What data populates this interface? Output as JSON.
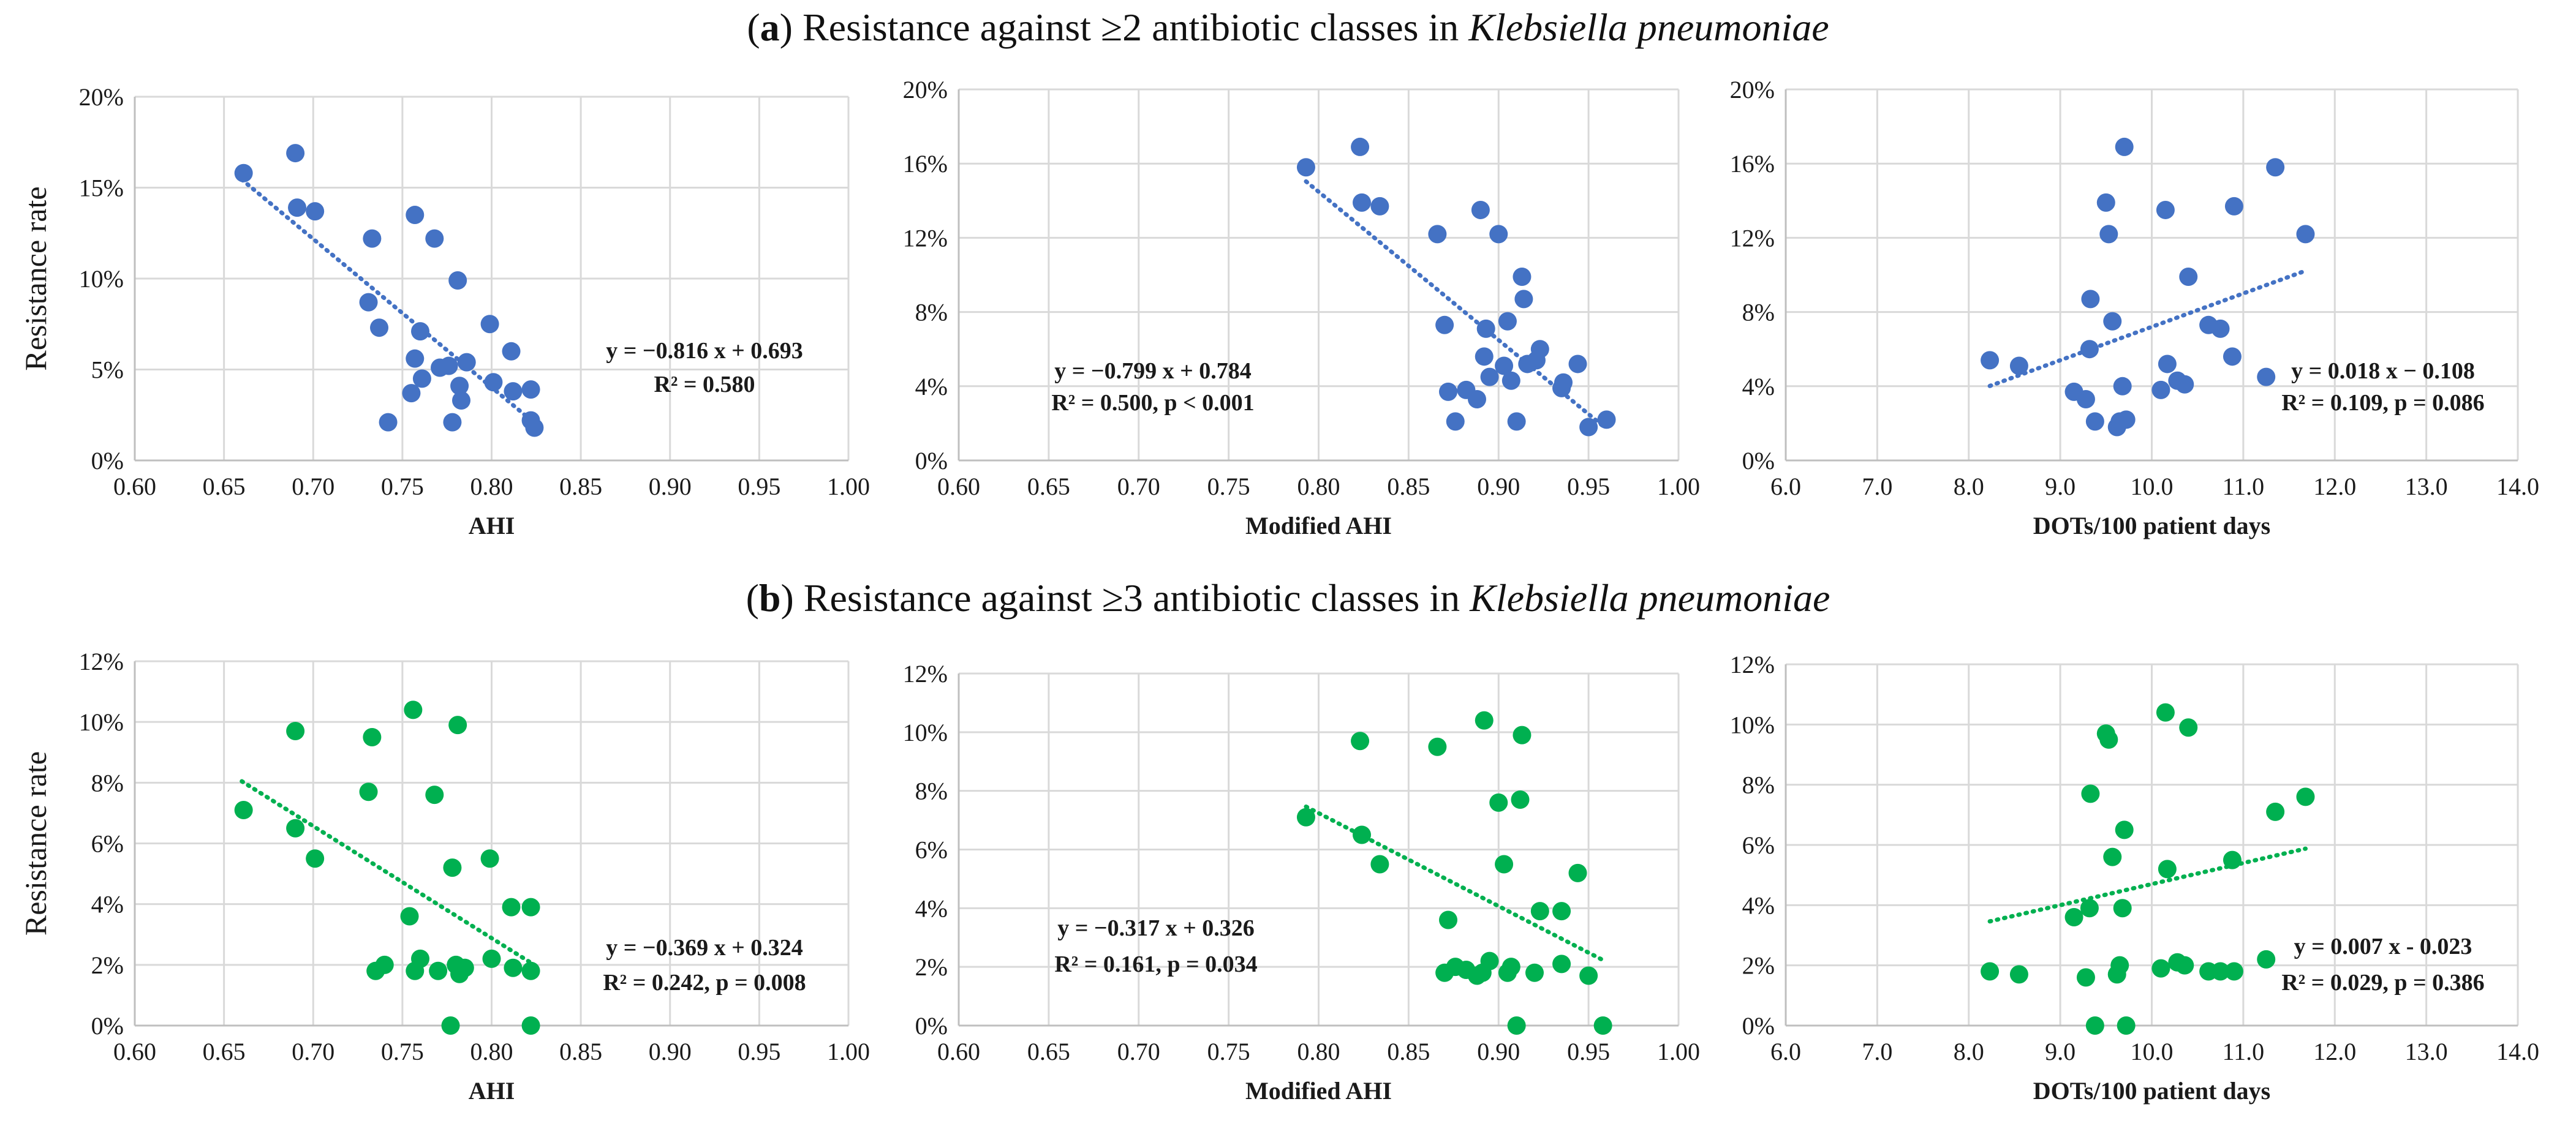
{
  "row_titles": [
    {
      "label": "a",
      "text_before": "Resistance against ≥2 antibiotic classes in ",
      "organism": "Klebsiella pneumoniae"
    },
    {
      "label": "b",
      "text_before": "Resistance against ≥3 antibiotic classes in ",
      "organism": "Klebsiella pneumoniae"
    }
  ],
  "chart_data": [
    {
      "type": "scatter",
      "panel": "a",
      "xlabel": "AHI",
      "ylabel": "Resistance rate",
      "xlim": [
        0.6,
        1.0
      ],
      "xticks": [
        "0.60",
        "0.65",
        "0.70",
        "0.75",
        "0.80",
        "0.85",
        "0.90",
        "0.95",
        "1.00"
      ],
      "ylim": [
        0,
        20
      ],
      "yticks": [
        "0%",
        "5%",
        "10%",
        "15%",
        "20%"
      ],
      "y_percent": true,
      "color": "#4472c4",
      "equation": [
        "y = −0.816 x + 0.693",
        "R² = 0.580"
      ],
      "trendline": {
        "x": [
          0.66,
          0.823
        ],
        "slope": -0.816,
        "intercept": 0.693
      },
      "points": [
        [
          0.661,
          15.8
        ],
        [
          0.69,
          16.9
        ],
        [
          0.691,
          13.9
        ],
        [
          0.701,
          13.7
        ],
        [
          0.733,
          12.2
        ],
        [
          0.731,
          8.7
        ],
        [
          0.737,
          7.3
        ],
        [
          0.742,
          2.1
        ],
        [
          0.757,
          13.5
        ],
        [
          0.757,
          5.6
        ],
        [
          0.76,
          7.1
        ],
        [
          0.761,
          4.5
        ],
        [
          0.755,
          3.7
        ],
        [
          0.768,
          12.2
        ],
        [
          0.771,
          5.1
        ],
        [
          0.776,
          5.2
        ],
        [
          0.778,
          2.1
        ],
        [
          0.781,
          9.9
        ],
        [
          0.782,
          4.1
        ],
        [
          0.783,
          3.3
        ],
        [
          0.786,
          5.4
        ],
        [
          0.799,
          7.5
        ],
        [
          0.801,
          4.3
        ],
        [
          0.811,
          6.0
        ],
        [
          0.812,
          3.8
        ],
        [
          0.822,
          3.9
        ],
        [
          0.822,
          2.2
        ],
        [
          0.824,
          1.8
        ]
      ]
    },
    {
      "type": "scatter",
      "panel": "a",
      "xlabel": "Modified AHI",
      "ylabel": "",
      "xlim": [
        0.6,
        1.0
      ],
      "xticks": [
        "0.60",
        "0.65",
        "0.70",
        "0.75",
        "0.80",
        "0.85",
        "0.90",
        "0.95",
        "1.00"
      ],
      "ylim": [
        0,
        20
      ],
      "yticks": [
        "0%",
        "4%",
        "8%",
        "12%",
        "16%",
        "20%"
      ],
      "y_percent": true,
      "color": "#4472c4",
      "equation": [
        "y = −0.799 x + 0.784",
        "R² = 0.500, p < 0.001"
      ],
      "trendline": {
        "x": [
          0.793,
          0.958
        ],
        "slope": -0.799,
        "intercept": 0.784
      },
      "points": [
        [
          0.793,
          15.8
        ],
        [
          0.823,
          16.9
        ],
        [
          0.824,
          13.9
        ],
        [
          0.834,
          13.7
        ],
        [
          0.866,
          12.2
        ],
        [
          0.87,
          7.3
        ],
        [
          0.872,
          3.7
        ],
        [
          0.876,
          2.1
        ],
        [
          0.882,
          3.8
        ],
        [
          0.888,
          3.3
        ],
        [
          0.89,
          13.5
        ],
        [
          0.892,
          5.6
        ],
        [
          0.893,
          7.1
        ],
        [
          0.895,
          4.5
        ],
        [
          0.9,
          12.2
        ],
        [
          0.903,
          5.1
        ],
        [
          0.905,
          7.5
        ],
        [
          0.907,
          4.3
        ],
        [
          0.91,
          2.1
        ],
        [
          0.913,
          9.9
        ],
        [
          0.914,
          8.7
        ],
        [
          0.916,
          5.2
        ],
        [
          0.921,
          5.4
        ],
        [
          0.923,
          6.0
        ],
        [
          0.935,
          3.9
        ],
        [
          0.936,
          4.2
        ],
        [
          0.944,
          5.2
        ],
        [
          0.95,
          1.8
        ],
        [
          0.96,
          2.2
        ]
      ]
    },
    {
      "type": "scatter",
      "panel": "a",
      "xlabel": "DOTs/100 patient days",
      "ylabel": "",
      "xlim": [
        6.0,
        14.0
      ],
      "xticks": [
        "6.0",
        "7.0",
        "8.0",
        "9.0",
        "10.0",
        "11.0",
        "12.0",
        "13.0",
        "14.0"
      ],
      "ylim": [
        0,
        20
      ],
      "yticks": [
        "0%",
        "4%",
        "8%",
        "12%",
        "16%",
        "20%"
      ],
      "y_percent": true,
      "color": "#4472c4",
      "equation": [
        "y = 0.018 x − 0.108",
        "R² = 0.109, p = 0.086"
      ],
      "trendline": {
        "x": [
          8.23,
          11.68
        ],
        "slope": 0.018,
        "intercept": -0.108
      },
      "points": [
        [
          8.23,
          5.4
        ],
        [
          8.55,
          5.1
        ],
        [
          9.15,
          3.7
        ],
        [
          9.28,
          3.3
        ],
        [
          9.33,
          8.7
        ],
        [
          9.32,
          6.0
        ],
        [
          9.38,
          2.1
        ],
        [
          9.5,
          13.9
        ],
        [
          9.53,
          12.2
        ],
        [
          9.57,
          7.5
        ],
        [
          9.62,
          1.8
        ],
        [
          9.65,
          2.1
        ],
        [
          9.68,
          4.0
        ],
        [
          9.7,
          16.9
        ],
        [
          9.72,
          2.2
        ],
        [
          10.1,
          3.8
        ],
        [
          10.15,
          13.5
        ],
        [
          10.17,
          5.2
        ],
        [
          10.28,
          4.3
        ],
        [
          10.36,
          4.1
        ],
        [
          10.4,
          9.9
        ],
        [
          10.62,
          7.3
        ],
        [
          10.75,
          7.1
        ],
        [
          10.88,
          5.6
        ],
        [
          10.9,
          13.7
        ],
        [
          11.25,
          4.5
        ],
        [
          11.35,
          15.8
        ],
        [
          11.68,
          12.2
        ]
      ]
    },
    {
      "type": "scatter",
      "panel": "b",
      "xlabel": "AHI",
      "ylabel": "Resistance rate",
      "xlim": [
        0.6,
        1.0
      ],
      "xticks": [
        "0.60",
        "0.65",
        "0.70",
        "0.75",
        "0.80",
        "0.85",
        "0.90",
        "0.95",
        "1.00"
      ],
      "ylim": [
        0,
        12
      ],
      "yticks": [
        "0%",
        "2%",
        "4%",
        "6%",
        "8%",
        "10%",
        "12%"
      ],
      "y_percent": true,
      "color": "#00b050",
      "equation": [
        "y = −0.369 x + 0.324",
        "R² = 0.242, p = 0.008"
      ],
      "trendline": {
        "x": [
          0.66,
          0.823
        ],
        "slope": -0.369,
        "intercept": 0.324
      },
      "points": [
        [
          0.661,
          7.1
        ],
        [
          0.69,
          9.7
        ],
        [
          0.69,
          6.5
        ],
        [
          0.701,
          5.5
        ],
        [
          0.733,
          9.5
        ],
        [
          0.731,
          7.7
        ],
        [
          0.735,
          1.8
        ],
        [
          0.74,
          2.0
        ],
        [
          0.756,
          10.4
        ],
        [
          0.754,
          3.6
        ],
        [
          0.757,
          1.8
        ],
        [
          0.76,
          2.2
        ],
        [
          0.768,
          7.6
        ],
        [
          0.77,
          1.8
        ],
        [
          0.778,
          5.2
        ],
        [
          0.777,
          0.0
        ],
        [
          0.781,
          9.9
        ],
        [
          0.78,
          2.0
        ],
        [
          0.782,
          1.7
        ],
        [
          0.785,
          1.9
        ],
        [
          0.799,
          5.5
        ],
        [
          0.8,
          2.2
        ],
        [
          0.811,
          3.9
        ],
        [
          0.812,
          1.9
        ],
        [
          0.822,
          3.9
        ],
        [
          0.822,
          1.8
        ],
        [
          0.822,
          0.0
        ]
      ]
    },
    {
      "type": "scatter",
      "panel": "b",
      "xlabel": "Modified AHI",
      "ylabel": "",
      "xlim": [
        0.6,
        1.0
      ],
      "xticks": [
        "0.60",
        "0.65",
        "0.70",
        "0.75",
        "0.80",
        "0.85",
        "0.90",
        "0.95",
        "1.00"
      ],
      "ylim": [
        0,
        12
      ],
      "yticks": [
        "0%",
        "2%",
        "4%",
        "6%",
        "8%",
        "10%",
        "12%"
      ],
      "y_percent": true,
      "color": "#00b050",
      "equation": [
        "y = −0.317 x + 0.326",
        "R² = 0.161, p = 0.034"
      ],
      "trendline": {
        "x": [
          0.793,
          0.958
        ],
        "slope": -0.317,
        "intercept": 0.326
      },
      "points": [
        [
          0.793,
          7.1
        ],
        [
          0.823,
          9.7
        ],
        [
          0.824,
          6.5
        ],
        [
          0.834,
          5.5
        ],
        [
          0.866,
          9.5
        ],
        [
          0.87,
          1.8
        ],
        [
          0.872,
          3.6
        ],
        [
          0.876,
          2.0
        ],
        [
          0.882,
          1.9
        ],
        [
          0.888,
          1.7
        ],
        [
          0.892,
          10.4
        ],
        [
          0.891,
          1.8
        ],
        [
          0.895,
          2.2
        ],
        [
          0.9,
          7.6
        ],
        [
          0.903,
          5.5
        ],
        [
          0.905,
          1.8
        ],
        [
          0.907,
          2.0
        ],
        [
          0.91,
          0.0
        ],
        [
          0.913,
          9.9
        ],
        [
          0.912,
          7.7
        ],
        [
          0.92,
          1.8
        ],
        [
          0.923,
          3.9
        ],
        [
          0.935,
          3.9
        ],
        [
          0.935,
          2.1
        ],
        [
          0.944,
          5.2
        ],
        [
          0.95,
          1.7
        ],
        [
          0.958,
          0.0
        ]
      ]
    },
    {
      "type": "scatter",
      "panel": "b",
      "xlabel": "DOTs/100 patient days",
      "ylabel": "",
      "xlim": [
        6.0,
        14.0
      ],
      "xticks": [
        "6.0",
        "7.0",
        "8.0",
        "9.0",
        "10.0",
        "11.0",
        "12.0",
        "13.0",
        "14.0"
      ],
      "ylim": [
        0,
        12
      ],
      "yticks": [
        "0%",
        "2%",
        "4%",
        "6%",
        "8%",
        "10%",
        "12%"
      ],
      "y_percent": true,
      "color": "#00b050",
      "equation": [
        "y = 0.007 x - 0.023",
        "R² = 0.029, p = 0.386"
      ],
      "trendline": {
        "x": [
          8.23,
          11.68
        ],
        "slope": 0.007,
        "intercept": -0.023
      },
      "points": [
        [
          8.23,
          1.8
        ],
        [
          8.55,
          1.7
        ],
        [
          9.15,
          3.6
        ],
        [
          9.28,
          1.6
        ],
        [
          9.33,
          7.7
        ],
        [
          9.32,
          3.9
        ],
        [
          9.38,
          0.0
        ],
        [
          9.5,
          9.7
        ],
        [
          9.53,
          9.5
        ],
        [
          9.57,
          5.6
        ],
        [
          9.62,
          1.7
        ],
        [
          9.65,
          2.0
        ],
        [
          9.68,
          3.9
        ],
        [
          9.7,
          6.5
        ],
        [
          9.72,
          0.0
        ],
        [
          10.1,
          1.9
        ],
        [
          10.15,
          10.4
        ],
        [
          10.17,
          5.2
        ],
        [
          10.28,
          2.1
        ],
        [
          10.36,
          2.0
        ],
        [
          10.4,
          9.9
        ],
        [
          10.62,
          1.8
        ],
        [
          10.75,
          1.8
        ],
        [
          10.88,
          5.5
        ],
        [
          10.9,
          1.8
        ],
        [
          11.25,
          2.2
        ],
        [
          11.35,
          7.1
        ],
        [
          11.68,
          7.6
        ]
      ]
    }
  ]
}
